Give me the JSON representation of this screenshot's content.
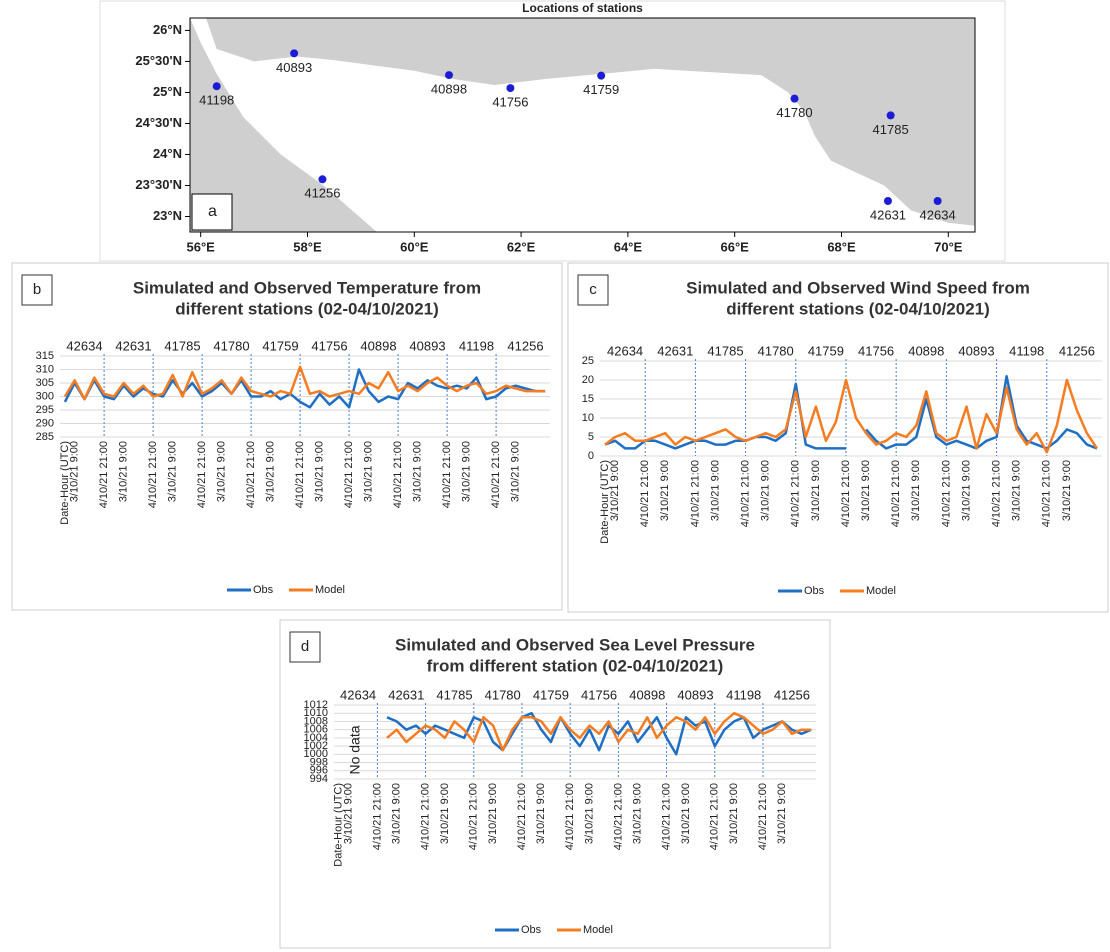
{
  "chart_data": [
    {
      "type": "scatter",
      "title": "Locations of stations",
      "panel": "a",
      "color": "#1c1cd6",
      "labels": [
        "40893",
        "41198",
        "41256",
        "40898",
        "41756",
        "41759",
        "41780",
        "41785",
        "42631",
        "42634"
      ],
      "x": [
        57.75,
        56.3,
        58.28,
        60.65,
        61.8,
        63.5,
        67.12,
        68.92,
        68.87,
        69.8
      ],
      "y": [
        25.63,
        25.1,
        23.6,
        25.28,
        25.07,
        25.27,
        24.9,
        24.63,
        23.25,
        23.25
      ],
      "xlim": [
        55.8,
        70.5
      ],
      "ylim": [
        22.75,
        26.2
      ],
      "xticks": [
        {
          "value": 56,
          "label": "56°E"
        },
        {
          "value": 58,
          "label": "58°E"
        },
        {
          "value": 60,
          "label": "60°E"
        },
        {
          "value": 62,
          "label": "62°E"
        },
        {
          "value": 64,
          "label": "64°E"
        },
        {
          "value": 66,
          "label": "66°E"
        },
        {
          "value": 68,
          "label": "68°E"
        },
        {
          "value": 70,
          "label": "70°E"
        }
      ],
      "yticks": [
        {
          "value": 23,
          "label": "23°N"
        },
        {
          "value": 23.5,
          "label": "23°30'N"
        },
        {
          "value": 24,
          "label": "24°N"
        },
        {
          "value": 24.5,
          "label": "24°30'N"
        },
        {
          "value": 25,
          "label": "25°N"
        },
        {
          "value": 25.5,
          "label": "25°30'N"
        },
        {
          "value": 26,
          "label": "26°N"
        }
      ]
    },
    {
      "type": "line",
      "panel": "b",
      "title": [
        "Simulated and Observed Temperature from",
        "different stations (02-04/10/2021)"
      ],
      "stations": [
        "42634",
        "42631",
        "41785",
        "41780",
        "41759",
        "41756",
        "40898",
        "40893",
        "41198",
        "41256"
      ],
      "categories": [
        "Date-Hour (UTC)",
        "3/10/21 9:00",
        null,
        null,
        "4/10/21 21:00",
        null,
        "3/10/21 9:00",
        null,
        null,
        "4/10/21 21:00",
        null,
        "3/10/21 9:00",
        null,
        null,
        "4/10/21 21:00",
        null,
        "3/10/21 9:00",
        null,
        null,
        "4/10/21 21:00",
        null,
        "3/10/21 9:00",
        null,
        null,
        "4/10/21 21:00",
        null,
        "3/10/21 9:00",
        null,
        null,
        "4/10/21 21:00",
        null,
        "3/10/21 9:00",
        null,
        null,
        "4/10/21 21:00",
        null,
        "3/10/21 9:00",
        null,
        null,
        "4/10/21 21:00",
        null,
        "3/10/21 9:00",
        null,
        null,
        "4/10/21 21:00",
        null,
        "3/10/21 9:00",
        null,
        null,
        null
      ],
      "series": [
        {
          "name": "Obs",
          "color": "#1f6fc5",
          "values": [
            298,
            305,
            299,
            306,
            300,
            299,
            304,
            300,
            303,
            301,
            300,
            306,
            301,
            305,
            300,
            302,
            305,
            301,
            306,
            300,
            300,
            302,
            299,
            301,
            298,
            296,
            301,
            297,
            300,
            296,
            310,
            302,
            298,
            300,
            299,
            305,
            303,
            306,
            304,
            303,
            304,
            303,
            307,
            299,
            300,
            303,
            304,
            303,
            302,
            302
          ]
        },
        {
          "name": "Model",
          "color": "#f57c20",
          "values": [
            300,
            306,
            299,
            307,
            301,
            300,
            305,
            301,
            304,
            300,
            301,
            308,
            300,
            309,
            301,
            303,
            306,
            301,
            307,
            302,
            301,
            300,
            302,
            301,
            311,
            301,
            302,
            300,
            301,
            302,
            301,
            305,
            303,
            309,
            302,
            304,
            302,
            305,
            307,
            304,
            302,
            304,
            305,
            301,
            302,
            304,
            303,
            302,
            302,
            302
          ]
        }
      ],
      "ylim": [
        285,
        315
      ],
      "yticks": [
        285,
        290,
        295,
        300,
        305,
        310,
        315
      ],
      "grid": true
    },
    {
      "type": "line",
      "panel": "c",
      "title": [
        "Simulated and Observed Wind Speed from",
        "different stations (02-04/10/2021)"
      ],
      "stations": [
        "42634",
        "42631",
        "41785",
        "41780",
        "41759",
        "41756",
        "40898",
        "40893",
        "41198",
        "41256"
      ],
      "categories": [
        "Date-Hour (UTC)",
        "3/10/21 9:00",
        null,
        null,
        "4/10/21 21:00",
        null,
        "3/10/21 9:00",
        null,
        null,
        "4/10/21 21:00",
        null,
        "3/10/21 9:00",
        null,
        null,
        "4/10/21 21:00",
        null,
        "3/10/21 9:00",
        null,
        null,
        "4/10/21 21:00",
        null,
        "3/10/21 9:00",
        null,
        null,
        "4/10/21 21:00",
        null,
        "3/10/21 9:00",
        null,
        null,
        "4/10/21 21:00",
        null,
        "3/10/21 9:00",
        null,
        null,
        "4/10/21 21:00",
        null,
        "3/10/21 9:00",
        null,
        null,
        "4/10/21 21:00",
        null,
        "3/10/21 9:00",
        null,
        null,
        "4/10/21 21:00",
        null,
        "3/10/21 9:00",
        null,
        null,
        null
      ],
      "series": [
        {
          "name": "Obs",
          "color": "#1f6fc5",
          "values": [
            3,
            4,
            2,
            2,
            4,
            4,
            3,
            2,
            3,
            4,
            4,
            3,
            3,
            4,
            4,
            5,
            5,
            4,
            6,
            19,
            3,
            2,
            2,
            2,
            2,
            null,
            7,
            4,
            2,
            3,
            3,
            5,
            15,
            5,
            3,
            4,
            3,
            2,
            4,
            5,
            21,
            8,
            4,
            3,
            2,
            4,
            7,
            6,
            3,
            2
          ]
        },
        {
          "name": "Model",
          "color": "#f57c20",
          "values": [
            3,
            5,
            6,
            4,
            4,
            5,
            6,
            3,
            5,
            4,
            5,
            6,
            7,
            5,
            4,
            5,
            6,
            5,
            7,
            17,
            5,
            13,
            4,
            9,
            20,
            10,
            6,
            3,
            4,
            6,
            5,
            8,
            17,
            6,
            4,
            5,
            13,
            2,
            11,
            6,
            18,
            7,
            3,
            6,
            1,
            8,
            20,
            12,
            6,
            2
          ]
        }
      ],
      "ylim": [
        0,
        25
      ],
      "yticks": [
        0,
        5,
        10,
        15,
        20,
        25
      ],
      "grid": true
    },
    {
      "type": "line",
      "panel": "d",
      "title": [
        "Simulated and Observed Sea Level Pressure",
        "from different station (02-04/10/2021)"
      ],
      "annotation": "No data",
      "stations": [
        "42634",
        "42631",
        "41785",
        "41780",
        "41759",
        "41756",
        "40898",
        "40893",
        "41198",
        "41256"
      ],
      "categories": [
        "Date-Hour (UTC)",
        "3/10/21 9:00",
        null,
        null,
        "4/10/21 21:00",
        null,
        "3/10/21 9:00",
        null,
        null,
        "4/10/21 21:00",
        null,
        "3/10/21 9:00",
        null,
        null,
        "4/10/21 21:00",
        null,
        "3/10/21 9:00",
        null,
        null,
        "4/10/21 21:00",
        null,
        "3/10/21 9:00",
        null,
        null,
        "4/10/21 21:00",
        null,
        "3/10/21 9:00",
        null,
        null,
        "4/10/21 21:00",
        null,
        "3/10/21 9:00",
        null,
        null,
        "4/10/21 21:00",
        null,
        "3/10/21 9:00",
        null,
        null,
        "4/10/21 21:00",
        null,
        "3/10/21 9:00",
        null,
        null,
        "4/10/21 21:00",
        null,
        "3/10/21 9:00",
        null,
        null,
        null
      ],
      "series": [
        {
          "name": "Obs",
          "color": "#1f6fc5",
          "values": [
            null,
            null,
            null,
            null,
            null,
            1009,
            1008,
            1006,
            1007,
            1005,
            1007,
            1006,
            1005,
            1004,
            1009,
            1008,
            1003,
            1001,
            1005,
            1009,
            1010,
            1006,
            1003,
            1009,
            1005,
            1002,
            1006,
            1001,
            1007,
            1005,
            1008,
            1003,
            1006,
            1009,
            1004,
            1000,
            1009,
            1007,
            1008,
            1002,
            1006,
            1008,
            1009,
            1004,
            1006,
            1007,
            1008,
            1006,
            1005,
            1006
          ]
        },
        {
          "name": "Model",
          "color": "#f57c20",
          "values": [
            null,
            null,
            null,
            null,
            null,
            1004,
            1006,
            1003,
            1005,
            1007,
            1006,
            1004,
            1008,
            1006,
            1003,
            1009,
            1007,
            1001,
            1006,
            1009,
            1009,
            1008,
            1005,
            1009,
            1006,
            1004,
            1007,
            1005,
            1008,
            1003,
            1006,
            1005,
            1009,
            1004,
            1007,
            1009,
            1008,
            1006,
            1009,
            1005,
            1008,
            1010,
            1009,
            1007,
            1005,
            1006,
            1008,
            1005,
            1006,
            1006
          ]
        }
      ],
      "ylim": [
        994,
        1012
      ],
      "yticks": [
        994,
        996,
        998,
        1000,
        1002,
        1004,
        1006,
        1008,
        1010,
        1012
      ],
      "grid": true
    }
  ]
}
